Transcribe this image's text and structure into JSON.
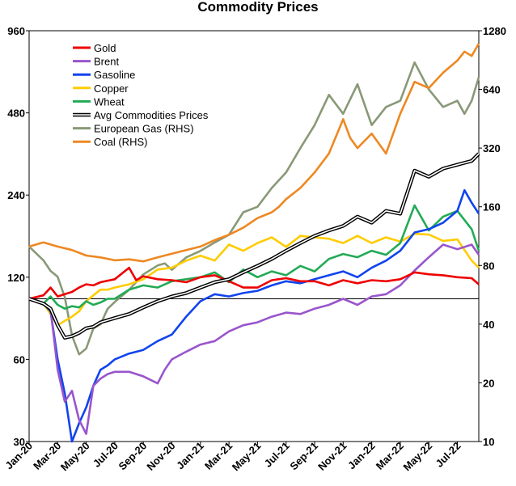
{
  "chart_data": {
    "type": "line",
    "title": "Commodity Prices",
    "x_labels": [
      "Jan-20",
      "Mar-20",
      "May-20",
      "Jul-20",
      "Sep-20",
      "Nov-20",
      "Jan-21",
      "Mar-21",
      "May-21",
      "Jul-21",
      "Sep-21",
      "Nov-21",
      "Jan-22",
      "Mar-22",
      "May-22",
      "Jul-22"
    ],
    "x_range": [
      0,
      31.5
    ],
    "left_axis": {
      "scale": "log",
      "range": [
        30,
        960
      ],
      "ticks": [
        "960",
        "480",
        "240",
        "120",
        "60",
        "30"
      ],
      "tick_values": [
        960,
        480,
        240,
        120,
        60,
        30
      ]
    },
    "right_axis": {
      "scale": "log",
      "range": [
        10,
        1280
      ],
      "ticks": [
        "1280",
        "640",
        "320",
        "160",
        "80",
        "40",
        "20",
        "10"
      ],
      "tick_values": [
        1280,
        640,
        320,
        160,
        80,
        40,
        20,
        10
      ]
    },
    "reference_line": 100,
    "series": [
      {
        "name": "Gold",
        "color": "#ee0000",
        "axis": "left",
        "style": "solid",
        "x": [
          0,
          1,
          1.5,
          2,
          2.5,
          3,
          3.5,
          4,
          4.5,
          5,
          6,
          7,
          7.5,
          8,
          9,
          10,
          11,
          12,
          13,
          14,
          15,
          16,
          17,
          18,
          19,
          20,
          21,
          22,
          23,
          24,
          25,
          26,
          27,
          28,
          29,
          30,
          31,
          31.5
        ],
        "y": [
          100,
          103,
          110,
          102,
          104,
          106,
          110,
          113,
          112,
          115,
          118,
          130,
          117,
          121,
          118,
          117,
          115,
          120,
          122,
          116,
          110,
          110,
          117,
          119,
          116,
          116,
          112,
          117,
          114,
          117,
          116,
          118,
          125,
          123,
          122,
          120,
          119,
          113
        ]
      },
      {
        "name": "Brent",
        "color": "#9955cc",
        "axis": "left",
        "style": "solid",
        "x": [
          0,
          1,
          1.5,
          2,
          2.5,
          3,
          3.5,
          4,
          4.5,
          5,
          5.5,
          6,
          7,
          8,
          9,
          9.5,
          10,
          11,
          12,
          13,
          14,
          15,
          16,
          17,
          18,
          19,
          20,
          21,
          22,
          23,
          24,
          25,
          26,
          27,
          28,
          29,
          30,
          31,
          31.5
        ],
        "y": [
          100,
          96,
          92,
          55,
          42,
          46,
          36,
          32,
          48,
          51,
          53,
          54,
          54,
          52,
          49,
          55,
          60,
          64,
          68,
          70,
          76,
          80,
          82,
          86,
          89,
          88,
          92,
          95,
          100,
          95,
          102,
          104,
          112,
          127,
          142,
          158,
          152,
          158,
          145
        ]
      },
      {
        "name": "Gasoline",
        "color": "#1144ee",
        "axis": "left",
        "style": "solid",
        "x": [
          0,
          1,
          1.5,
          2,
          2.5,
          3,
          3.5,
          4,
          4.5,
          5,
          5.5,
          6,
          7,
          8,
          9,
          10,
          11,
          12,
          13,
          14,
          15,
          16,
          17,
          18,
          19,
          20,
          21,
          22,
          23,
          24,
          25,
          26,
          27,
          28,
          29,
          30,
          30.5,
          31,
          31.5
        ],
        "y": [
          100,
          96,
          90,
          60,
          45,
          30,
          35,
          40,
          48,
          55,
          57,
          60,
          63,
          65,
          70,
          74,
          86,
          98,
          104,
          102,
          105,
          107,
          112,
          116,
          114,
          118,
          122,
          126,
          120,
          130,
          138,
          150,
          175,
          180,
          190,
          210,
          250,
          225,
          205
        ]
      },
      {
        "name": "Copper",
        "color": "#ffcc00",
        "axis": "left",
        "style": "solid",
        "x": [
          0,
          1,
          1.5,
          2,
          2.5,
          3,
          3.5,
          4,
          4.5,
          5,
          5.5,
          6,
          7,
          8,
          9,
          10,
          11,
          12,
          13,
          14,
          15,
          16,
          17,
          18,
          19,
          20,
          21,
          22,
          23,
          24,
          25,
          26,
          27,
          28,
          29,
          30,
          31,
          31.5
        ],
        "y": [
          100,
          96,
          88,
          80,
          83,
          86,
          90,
          98,
          103,
          108,
          108,
          110,
          113,
          118,
          128,
          130,
          138,
          144,
          138,
          158,
          150,
          160,
          168,
          155,
          170,
          168,
          166,
          160,
          170,
          160,
          168,
          162,
          173,
          172,
          163,
          165,
          138,
          130
        ]
      },
      {
        "name": "Wheat",
        "color": "#22aa55",
        "axis": "left",
        "style": "solid",
        "x": [
          0,
          1,
          1.5,
          2,
          2.5,
          3,
          3.5,
          4,
          4.5,
          5,
          5.5,
          6,
          7,
          8,
          9,
          10,
          11,
          12,
          13,
          14,
          15,
          16,
          17,
          18,
          19,
          20,
          21,
          22,
          23,
          24,
          25,
          26,
          27,
          28,
          29,
          30,
          31,
          31.5
        ],
        "y": [
          100,
          96,
          102,
          95,
          92,
          94,
          93,
          98,
          95,
          97,
          100,
          100,
          108,
          112,
          110,
          116,
          118,
          120,
          125,
          115,
          128,
          120,
          126,
          122,
          132,
          126,
          140,
          146,
          142,
          150,
          145,
          160,
          220,
          178,
          200,
          210,
          180,
          150
        ]
      },
      {
        "name": "Avg Commodities Prices",
        "color": "#000000",
        "axis": "left",
        "style": "double",
        "x": [
          0,
          1,
          1.5,
          2,
          2.5,
          3,
          3.5,
          4,
          4.5,
          5,
          6,
          7,
          8,
          9,
          10,
          11,
          12,
          13,
          14,
          15,
          16,
          17,
          18,
          19,
          20,
          21,
          22,
          23,
          24,
          25,
          26,
          27,
          28,
          29,
          30,
          31,
          31.5
        ],
        "y": [
          100,
          96,
          92,
          80,
          72,
          73,
          75,
          78,
          79,
          82,
          85,
          88,
          93,
          98,
          102,
          105,
          110,
          115,
          118,
          125,
          132,
          140,
          150,
          160,
          170,
          178,
          185,
          200,
          190,
          210,
          205,
          295,
          280,
          300,
          310,
          320,
          340
        ]
      },
      {
        "name": "European Gas (RHS)",
        "color": "#889977",
        "axis": "right",
        "style": "solid",
        "x": [
          0,
          1,
          1.5,
          2,
          2.5,
          3,
          3.5,
          4,
          4.5,
          5,
          5.5,
          6,
          7,
          8,
          9,
          9.5,
          10,
          11,
          12,
          13,
          14,
          15,
          16,
          17,
          18,
          19,
          20,
          21,
          22,
          23,
          24,
          25,
          26,
          27,
          28,
          29,
          30,
          30.5,
          31,
          31.5
        ],
        "y": [
          100,
          85,
          75,
          70,
          55,
          35,
          28,
          30,
          38,
          40,
          48,
          52,
          60,
          72,
          80,
          82,
          76,
          88,
          95,
          105,
          115,
          150,
          160,
          200,
          240,
          320,
          420,
          600,
          480,
          680,
          420,
          520,
          560,
          880,
          640,
          520,
          560,
          480,
          560,
          740
        ]
      },
      {
        "name": "Coal (RHS)",
        "color": "#ee8822",
        "axis": "right",
        "style": "solid",
        "x": [
          0,
          1,
          2,
          3,
          4,
          5,
          6,
          7,
          8,
          9,
          10,
          11,
          12,
          13,
          14,
          15,
          16,
          17,
          17.5,
          18,
          19,
          20,
          21,
          22,
          22.5,
          23,
          24,
          25,
          26,
          27,
          28,
          29,
          30,
          30.5,
          31,
          31.5
        ],
        "y": [
          100,
          105,
          100,
          96,
          90,
          88,
          85,
          86,
          84,
          88,
          92,
          96,
          100,
          108,
          115,
          125,
          140,
          150,
          160,
          175,
          200,
          240,
          300,
          450,
          360,
          320,
          380,
          300,
          480,
          700,
          650,
          780,
          900,
          1000,
          950,
          1100
        ]
      }
    ]
  }
}
